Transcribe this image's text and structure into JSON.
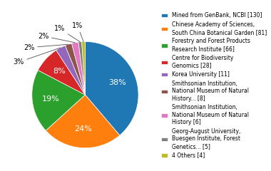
{
  "chart_data": {
    "type": "pie",
    "categories": [
      "Mined from GenBank, NCBI [130]",
      "Chinese Academy of Sciences,\nSouth China Botanical Garden [81]",
      "Forestry and Forest Products\nResearch Institute [66]",
      "Centre for Biodiversity\nGenomics [28]",
      "Korea University [11]",
      "Smithsonian Institution,\nNational Museum of Natural\nHistory... [8]",
      "Smithsonian Institution,\nNational Museum of Natural\nHistory [6]",
      "Georg-August University,\nBuesgen Institute, Forest\nGenetics... [5]",
      "4 Others [4]"
    ],
    "values": [
      38,
      24,
      19,
      8,
      3,
      2,
      2,
      1,
      1
    ],
    "value_labels": [
      "38%",
      "24%",
      "19%",
      "8%",
      "3%",
      "2%",
      "2%",
      "1%",
      "1%"
    ],
    "data_labels": true,
    "legend": "center right"
  }
}
